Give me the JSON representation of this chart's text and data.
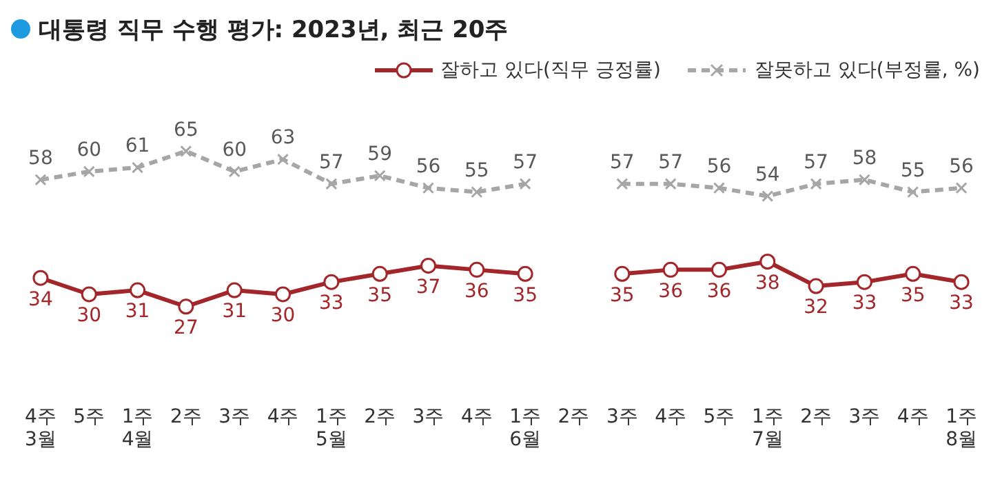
{
  "chart_data": {
    "type": "line",
    "title": "대통령 직무 수행 평가: 2023년, 최근 20주",
    "categories": [
      "4주\n3월",
      "5주",
      "1주\n4월",
      "2주",
      "3주",
      "4주",
      "1주\n5월",
      "2주",
      "3주",
      "4주",
      "1주\n6월",
      "2주",
      "3주",
      "4주",
      "5주",
      "1주\n7월",
      "2주",
      "3주",
      "4주",
      "1주\n8월"
    ],
    "series": [
      {
        "name": "잘하고 있다(직무 긍정률)",
        "color": "#a3262a",
        "marker": "circle",
        "line_style": "solid",
        "values": [
          34,
          30,
          31,
          27,
          31,
          30,
          33,
          35,
          37,
          36,
          35,
          null,
          35,
          36,
          36,
          38,
          32,
          33,
          35,
          33
        ]
      },
      {
        "name": "잘못하고 있다(부정률, %)",
        "color": "#a6a6a6",
        "marker": "cross",
        "line_style": "dashed",
        "values": [
          58,
          60,
          61,
          65,
          60,
          63,
          57,
          59,
          56,
          55,
          57,
          null,
          57,
          57,
          56,
          54,
          57,
          58,
          55,
          56
        ]
      }
    ],
    "data_labels": true,
    "grid": false,
    "legend": "top right",
    "tick_labels": "x"
  }
}
